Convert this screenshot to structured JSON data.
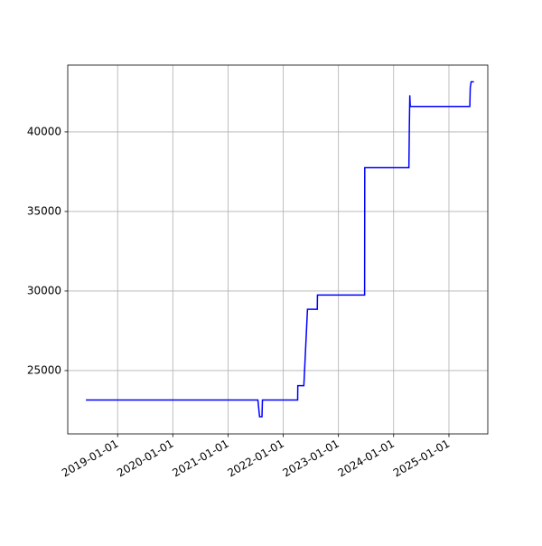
{
  "chart_data": {
    "type": "line",
    "x": [
      "2018-06-05",
      "2021-07-17",
      "2021-07-28",
      "2021-08-13",
      "2021-08-16",
      "2022-04-06",
      "2022-04-07",
      "2022-05-17",
      "2022-06-10",
      "2022-08-14",
      "2022-08-15",
      "2023-06-23",
      "2023-06-24",
      "2024-04-11",
      "2024-04-14",
      "2024-04-17",
      "2024-04-20",
      "2025-05-19",
      "2025-05-22",
      "2025-05-28",
      "2025-06-15"
    ],
    "series": [
      {
        "color": "#0000ff",
        "values": [
          23150,
          23150,
          22100,
          22100,
          23150,
          23150,
          24050,
          24050,
          28850,
          28850,
          29750,
          29750,
          37750,
          37750,
          40300,
          42300,
          41600,
          41600,
          42800,
          43150,
          43150
        ]
      }
    ],
    "xlim": [
      "2018-02-05",
      "2025-09-15"
    ],
    "xticks": [
      "2019-01-01",
      "2020-01-01",
      "2021-01-01",
      "2022-01-01",
      "2023-01-01",
      "2024-01-01",
      "2025-01-01"
    ],
    "ylim": [
      21020,
      44200
    ],
    "yticks": [
      25000,
      30000,
      35000,
      40000
    ],
    "grid": true
  }
}
